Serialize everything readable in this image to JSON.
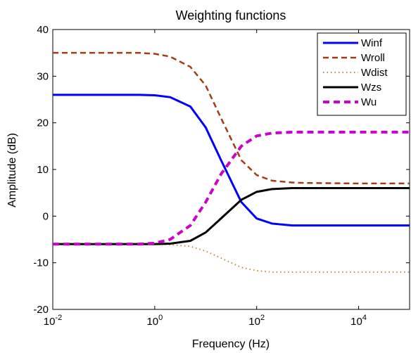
{
  "chart_data": {
    "type": "line",
    "title": "Weighting functions",
    "x_label": "Frequency (Hz)",
    "y_label": "Amplitude (dB)",
    "x_scale": "log",
    "x": [
      0.01,
      0.1,
      0.5,
      1,
      2,
      5,
      10,
      20,
      50,
      100,
      200,
      500,
      1000,
      10000,
      100000
    ],
    "series": [
      {
        "name": "Winf",
        "color": "#0000ff",
        "style": "solid",
        "values": [
          26,
          26,
          26,
          25.9,
          25.5,
          23.5,
          19,
          12,
          3,
          -0.5,
          -1.6,
          -2,
          -2,
          -2,
          -2
        ]
      },
      {
        "name": "Wroll",
        "color": "#a33c10",
        "style": "dashed",
        "values": [
          35,
          35,
          35,
          34.8,
          34.2,
          32,
          28,
          21,
          12,
          8.8,
          7.6,
          7.2,
          7.1,
          7,
          7
        ]
      },
      {
        "name": "Wdist",
        "color": "#c8883a",
        "style": "dotted",
        "values": [
          -6,
          -6,
          -6,
          -6,
          -6.1,
          -6.5,
          -7.5,
          -9,
          -11,
          -11.7,
          -12,
          -12,
          -12,
          -12,
          -12
        ]
      },
      {
        "name": "Wzs",
        "color": "#000000",
        "style": "solid",
        "values": [
          -6,
          -6,
          -6,
          -6,
          -5.9,
          -5.3,
          -3.5,
          -0.5,
          3.5,
          5.2,
          5.8,
          6,
          6,
          6,
          6
        ]
      },
      {
        "name": "Wu",
        "color": "#cc00cc",
        "style": "dashed-thick",
        "values": [
          -6,
          -6,
          -6,
          -5.8,
          -5,
          -2,
          3,
          9,
          15,
          17.2,
          17.8,
          18,
          18,
          18,
          18
        ]
      }
    ],
    "xlim": [
      0.01,
      100000
    ],
    "xticks": [
      {
        "value": 0.01,
        "label": "10-2"
      },
      {
        "value": 1,
        "label": "100"
      },
      {
        "value": 100,
        "label": "102"
      },
      {
        "value": 10000,
        "label": "104"
      }
    ],
    "ylim": [
      -20,
      40
    ],
    "yticks": [
      -20,
      -10,
      0,
      10,
      20,
      30,
      40
    ],
    "legend": "top-right"
  }
}
